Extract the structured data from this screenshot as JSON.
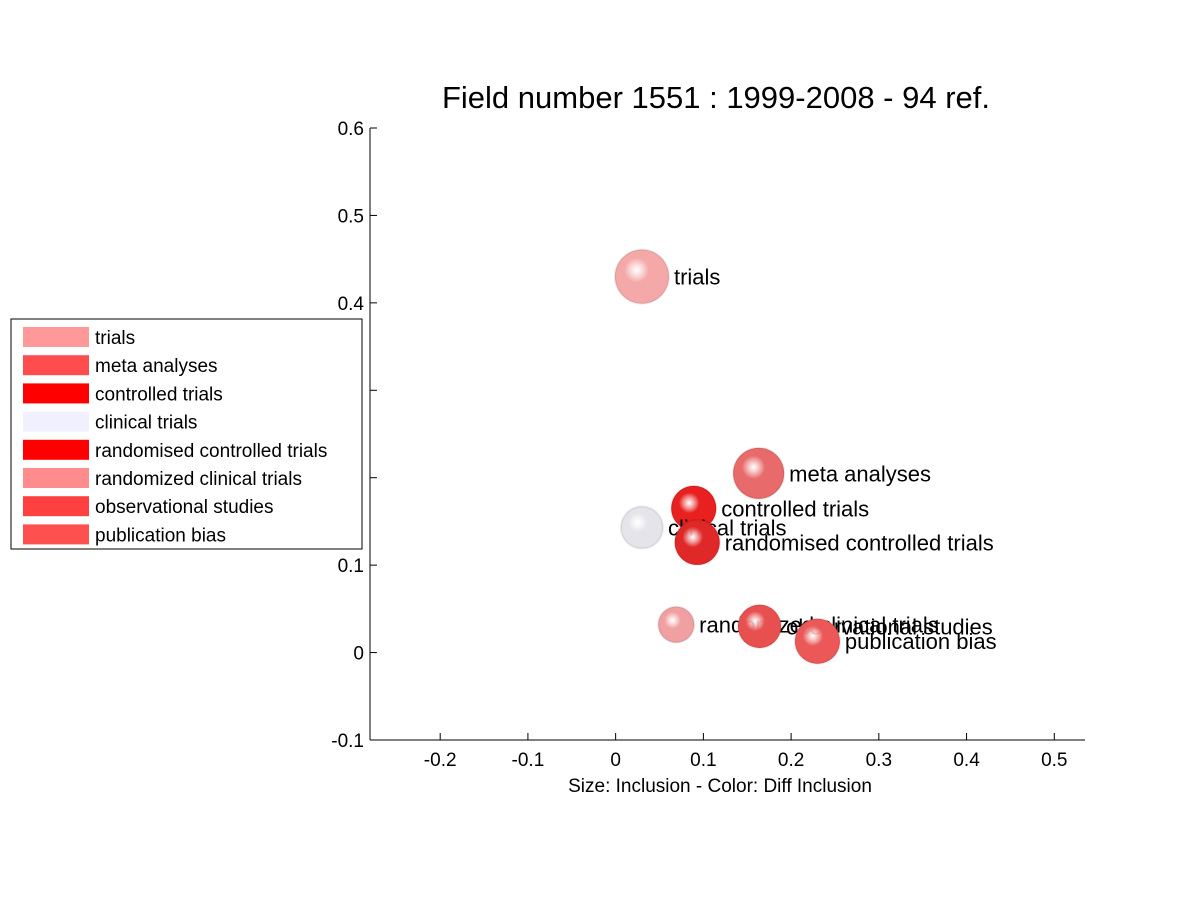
{
  "chart_data": {
    "type": "scatter",
    "title": "Field number 1551 : 1999-2008  - 94 ref.",
    "xlabel": "Size: Inclusion - Color: Diff Inclusion",
    "ylabel": "",
    "xlim": [
      -0.28,
      0.535
    ],
    "ylim": [
      -0.1,
      0.6
    ],
    "xticks": [
      -0.2,
      -0.1,
      0,
      0.1,
      0.2,
      0.3,
      0.4,
      0.5
    ],
    "xtick_labels": [
      "-0.2",
      "-0.1",
      "0",
      "0.1",
      "0.2",
      "0.3",
      "0.4",
      "0.5"
    ],
    "yticks": [
      -0.1,
      0,
      0.1,
      0.2,
      0.3,
      0.4,
      0.5,
      0.6
    ],
    "ytick_labels": [
      "-0.1",
      "0",
      "0.1",
      "",
      "",
      "0.4",
      "0.5",
      "0.6"
    ],
    "grid": false,
    "legend_position": "left",
    "points": [
      {
        "label": "trials",
        "x": 0.03,
        "y": 0.43,
        "size": 0.9,
        "color": "#f4a8a8"
      },
      {
        "label": "meta analyses",
        "x": 0.163,
        "y": 0.205,
        "size": 0.85,
        "color": "#e86a6a"
      },
      {
        "label": "controlled trials",
        "x": 0.089,
        "y": 0.165,
        "size": 0.75,
        "color": "#e82020"
      },
      {
        "label": "clinical trials",
        "x": 0.03,
        "y": 0.143,
        "size": 0.7,
        "color": "#e4e4ea"
      },
      {
        "label": "randomised controlled trials",
        "x": 0.093,
        "y": 0.126,
        "size": 0.75,
        "color": "#e02828"
      },
      {
        "label": "randomized clinical trials",
        "x": 0.069,
        "y": 0.032,
        "size": 0.6,
        "color": "#f0a0a0"
      },
      {
        "label": "observational studies",
        "x": 0.164,
        "y": 0.03,
        "size": 0.72,
        "color": "#e85050"
      },
      {
        "label": "publication bias",
        "x": 0.23,
        "y": 0.013,
        "size": 0.75,
        "color": "#ec5858"
      }
    ],
    "legend": [
      {
        "label": "trials",
        "color": "#ff9999"
      },
      {
        "label": "meta analyses",
        "color": "#ff4d4d"
      },
      {
        "label": "controlled trials",
        "color": "#ff0000"
      },
      {
        "label": "clinical trials",
        "color": "#f0f0ff"
      },
      {
        "label": "randomised controlled trials",
        "color": "#ff0000"
      },
      {
        "label": "randomized clinical trials",
        "color": "#ff8c8c"
      },
      {
        "label": "observational studies",
        "color": "#ff4040"
      },
      {
        "label": "publication bias",
        "color": "#ff5050"
      }
    ]
  }
}
